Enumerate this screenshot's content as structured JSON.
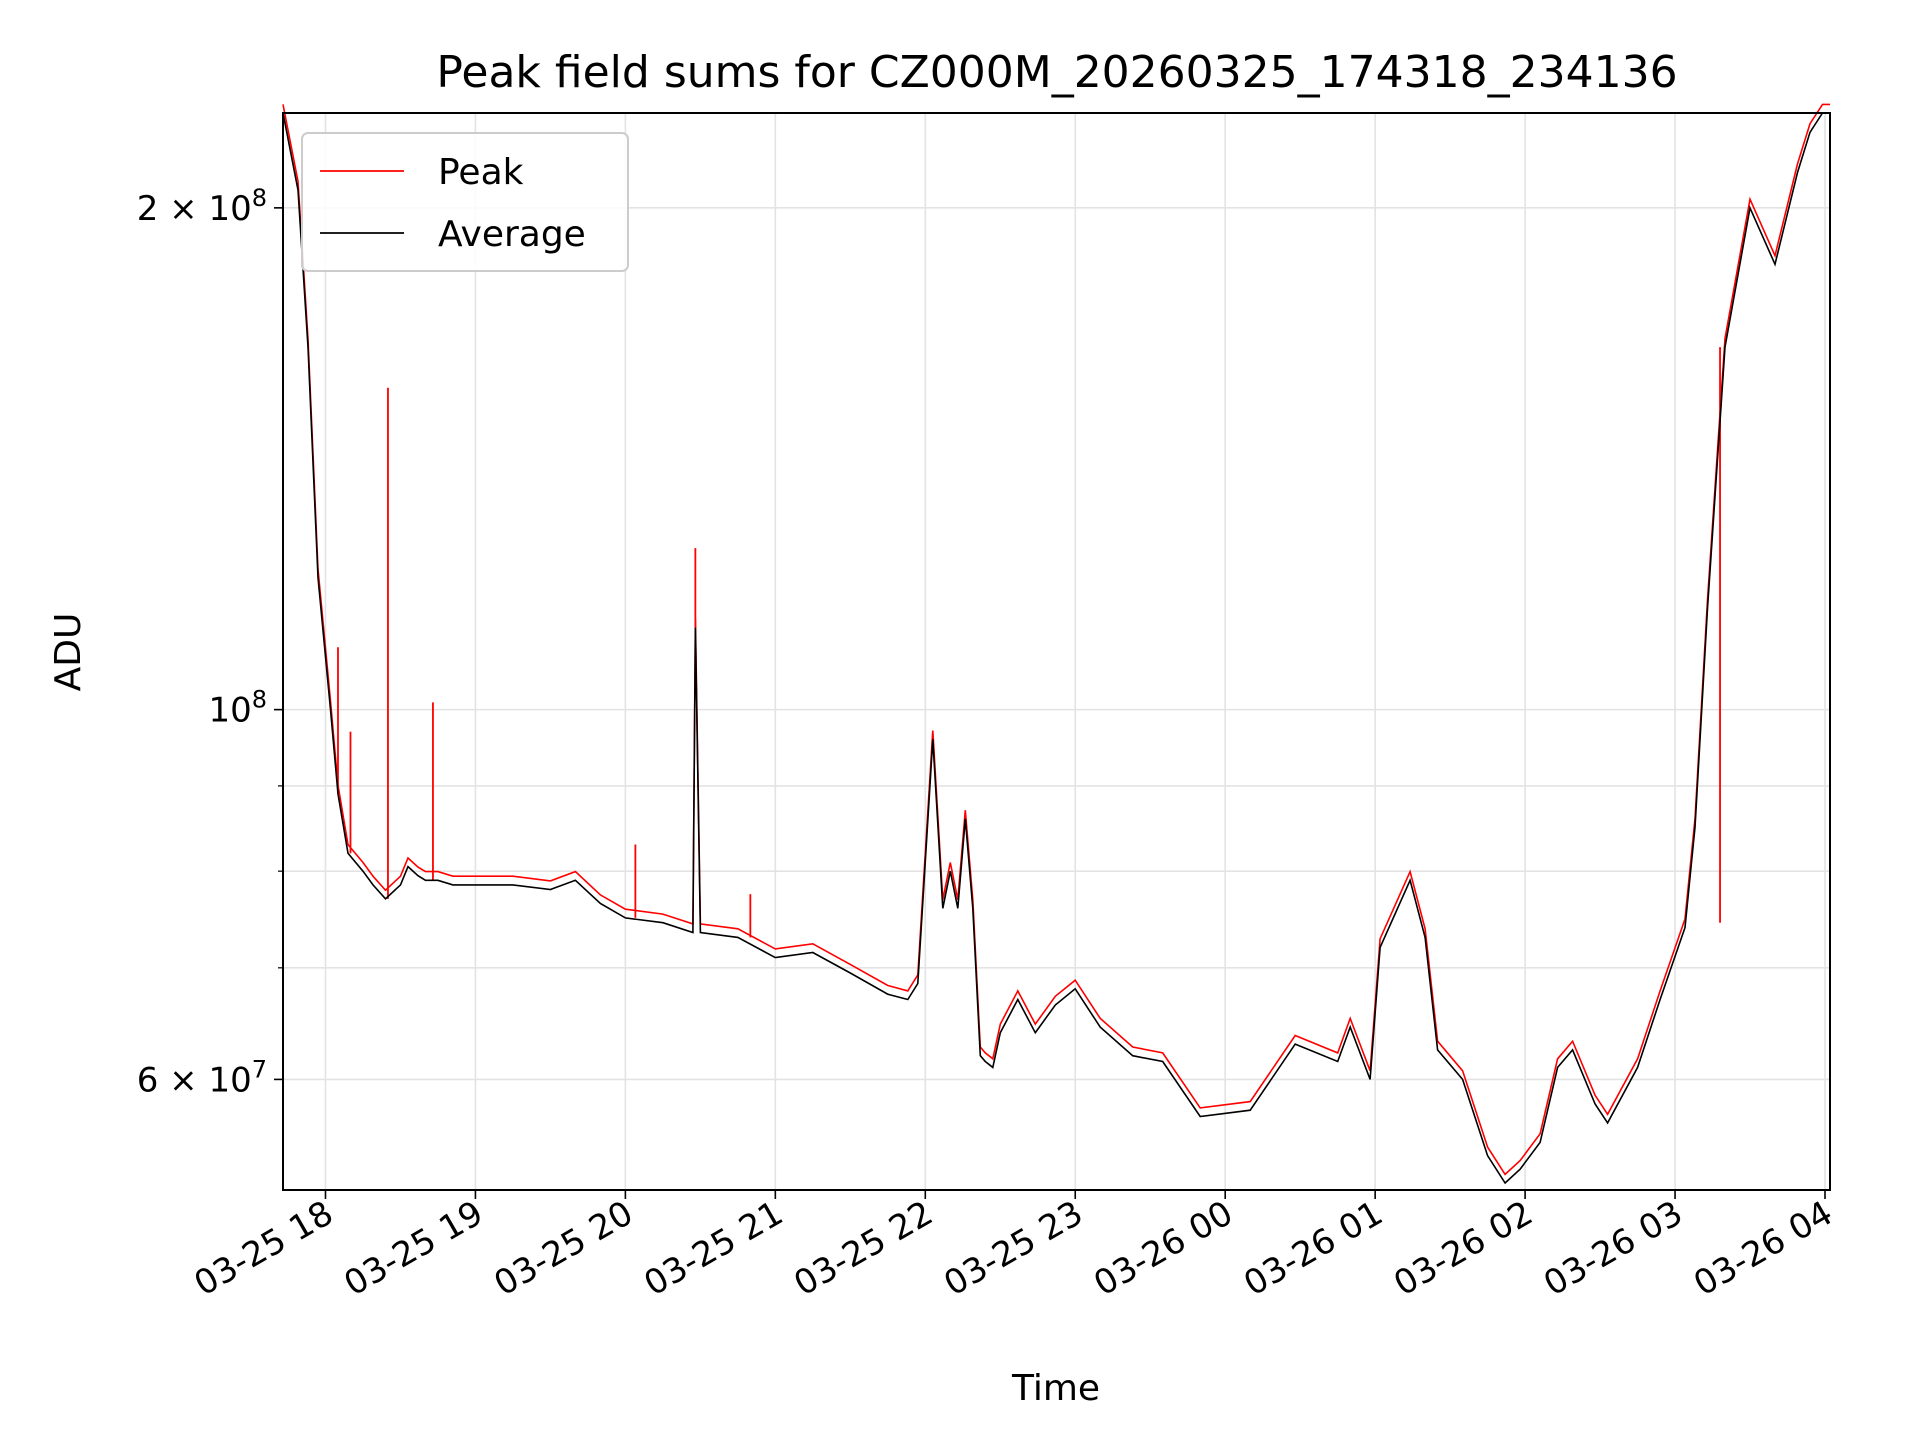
{
  "chart_data": {
    "type": "line",
    "title": "Peak field sums for CZ000M_20260325_174318_234136",
    "xlabel": "Time",
    "ylabel": "ADU",
    "yscale": "log",
    "ylim": [
      51500000,
      228000000
    ],
    "xlim": [
      "2026-03-25 17:43",
      "2026-03-26 04:02"
    ],
    "grid": true,
    "legend_position": "upper-left",
    "x_ticks": [
      "03-25 18",
      "03-25 19",
      "03-25 20",
      "03-25 21",
      "03-25 22",
      "03-25 23",
      "03-26 00",
      "03-26 01",
      "03-26 02",
      "03-26 03",
      "03-26 04"
    ],
    "y_tick_labels": [
      {
        "value": 200000000,
        "label": "2 × 10^8"
      },
      {
        "value": 100000000,
        "label": "10^8"
      },
      {
        "value": 60000000,
        "label": "6 × 10^7"
      }
    ],
    "y_minor_ticks": [
      70000000,
      80000000,
      90000000
    ],
    "series": [
      {
        "name": "Average",
        "color": "#000000",
        "x": [
          "2026-03-25 17:43",
          "2026-03-25 17:49",
          "2026-03-25 17:53",
          "2026-03-25 17:57",
          "2026-03-25 18:02",
          "2026-03-25 18:05",
          "2026-03-25 18:09",
          "2026-03-25 18:15",
          "2026-03-25 18:19",
          "2026-03-25 18:24",
          "2026-03-25 18:30",
          "2026-03-25 18:33",
          "2026-03-25 18:37",
          "2026-03-25 18:40",
          "2026-03-25 18:45",
          "2026-03-25 18:51",
          "2026-03-25 19:00",
          "2026-03-25 19:15",
          "2026-03-25 19:30",
          "2026-03-25 19:40",
          "2026-03-25 19:50",
          "2026-03-25 20:00",
          "2026-03-25 20:15",
          "2026-03-25 20:27",
          "2026-03-25 20:28",
          "2026-03-25 20:30",
          "2026-03-25 20:45",
          "2026-03-25 21:00",
          "2026-03-25 21:15",
          "2026-03-25 21:30",
          "2026-03-25 21:45",
          "2026-03-25 21:53",
          "2026-03-25 21:57",
          "2026-03-25 22:03",
          "2026-03-25 22:07",
          "2026-03-25 22:10",
          "2026-03-25 22:13",
          "2026-03-25 22:16",
          "2026-03-25 22:19",
          "2026-03-25 22:22",
          "2026-03-25 22:24",
          "2026-03-25 22:27",
          "2026-03-25 22:30",
          "2026-03-25 22:37",
          "2026-03-25 22:44",
          "2026-03-25 22:52",
          "2026-03-25 23:00",
          "2026-03-25 23:10",
          "2026-03-25 23:23",
          "2026-03-25 23:35",
          "2026-03-25 23:50",
          "2026-03-26 00:10",
          "2026-03-26 00:28",
          "2026-03-26 00:45",
          "2026-03-26 00:50",
          "2026-03-26 00:58",
          "2026-03-26 01:02",
          "2026-03-26 01:14",
          "2026-03-26 01:20",
          "2026-03-26 01:25",
          "2026-03-26 01:35",
          "2026-03-26 01:45",
          "2026-03-26 01:52",
          "2026-03-26 01:58",
          "2026-03-26 02:06",
          "2026-03-26 02:13",
          "2026-03-26 02:19",
          "2026-03-26 02:28",
          "2026-03-26 02:33",
          "2026-03-26 02:45",
          "2026-03-26 02:54",
          "2026-03-26 03:04",
          "2026-03-26 03:08",
          "2026-03-26 03:13",
          "2026-03-26 03:20",
          "2026-03-26 03:30",
          "2026-03-26 03:40",
          "2026-03-26 03:49",
          "2026-03-26 03:54",
          "2026-03-26 03:59",
          "2026-03-26 04:02"
        ],
        "values": [
          228000000,
          205000000,
          165000000,
          120000000,
          100000000,
          89000000,
          82000000,
          80000000,
          78500000,
          77000000,
          78500000,
          80500000,
          79500000,
          79000000,
          79000000,
          78500000,
          78500000,
          78500000,
          78000000,
          79000000,
          76500000,
          75000000,
          74500000,
          73500000,
          112000000,
          73500000,
          73000000,
          71000000,
          71500000,
          69500000,
          67500000,
          67000000,
          68500000,
          96000000,
          76000000,
          80000000,
          76000000,
          86000000,
          76000000,
          62000000,
          61500000,
          61000000,
          64000000,
          67000000,
          64000000,
          66500000,
          68000000,
          64500000,
          62000000,
          61500000,
          57000000,
          57500000,
          63000000,
          61500000,
          64500000,
          60000000,
          72000000,
          79000000,
          73000000,
          62500000,
          60000000,
          54000000,
          52000000,
          53000000,
          55000000,
          61000000,
          62500000,
          58000000,
          56500000,
          61000000,
          67000000,
          74000000,
          85000000,
          115000000,
          165000000,
          200000000,
          185000000,
          210000000,
          222000000,
          228000000,
          228000000
        ]
      },
      {
        "name": "Peak",
        "color": "#ff0000",
        "spikes": [
          {
            "x": "2026-03-25 18:05",
            "value": 109000000
          },
          {
            "x": "2026-03-25 18:10",
            "value": 97000000
          },
          {
            "x": "2026-03-25 18:25",
            "value": 156000000
          },
          {
            "x": "2026-03-25 18:43",
            "value": 101000000
          },
          {
            "x": "2026-03-25 20:04",
            "value": 83000000
          },
          {
            "x": "2026-03-25 20:28",
            "value": 125000000
          },
          {
            "x": "2026-03-25 20:50",
            "value": 77500000
          },
          {
            "x": "2026-03-26 03:18",
            "value": 74500000
          }
        ]
      }
    ]
  }
}
